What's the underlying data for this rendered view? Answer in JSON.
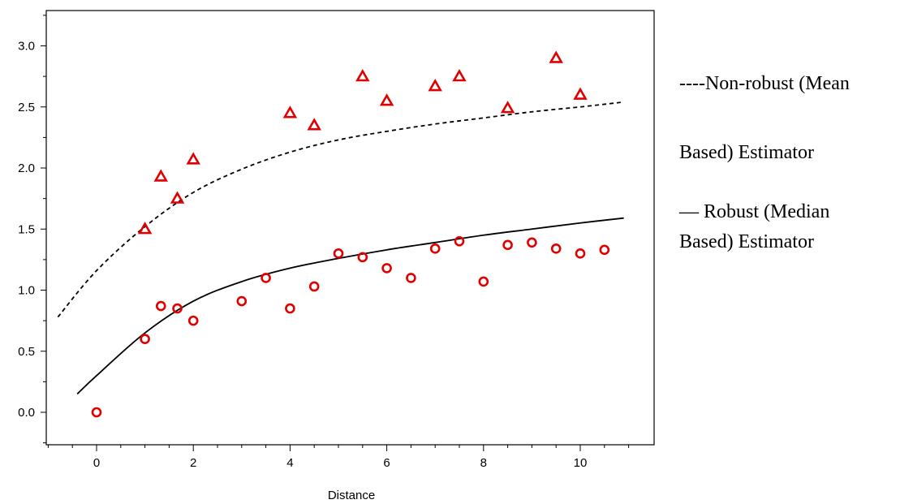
{
  "chart_data": {
    "type": "scatter",
    "title": "",
    "xlabel": "Distance",
    "ylabel": "",
    "xlim": [
      -1.0,
      11.5
    ],
    "ylim": [
      -0.27,
      3.27
    ],
    "grid": false,
    "legend_position": "right",
    "x_ticks": [
      0,
      2,
      4,
      6,
      8,
      10
    ],
    "x_tick_labels": [
      "0",
      "2",
      "4",
      "6",
      "8",
      "10"
    ],
    "y_ticks": [
      0.0,
      0.5,
      1.0,
      1.5,
      2.0,
      2.5,
      3.0
    ],
    "y_tick_labels": [
      "0.0",
      "0.5",
      "1.0",
      "1.5",
      "2.0",
      "2.5",
      "3.0"
    ],
    "colors": {
      "points": "#e00000",
      "lines": "#000000"
    },
    "series": [
      {
        "kind": "points",
        "marker": "triangle",
        "x": [
          1.0,
          1.33,
          1.67,
          2.0,
          4.0,
          4.5,
          5.5,
          6.0,
          7.0,
          7.5,
          8.5,
          9.5,
          10.0
        ],
        "y": [
          1.5,
          1.93,
          1.75,
          2.07,
          2.45,
          2.35,
          2.75,
          2.55,
          2.67,
          2.75,
          2.49,
          2.9,
          2.6
        ]
      },
      {
        "kind": "points",
        "marker": "circle",
        "x": [
          0.0,
          1.0,
          1.33,
          1.67,
          2.0,
          3.0,
          3.5,
          4.0,
          4.5,
          5.0,
          5.5,
          6.0,
          6.5,
          7.0,
          7.5,
          8.0,
          8.5,
          9.0,
          9.5,
          10.0,
          10.5
        ],
        "y": [
          0.0,
          0.6,
          0.87,
          0.85,
          0.75,
          0.91,
          1.1,
          0.85,
          1.03,
          1.3,
          1.27,
          1.18,
          1.1,
          1.34,
          1.4,
          1.07,
          1.37,
          1.39,
          1.34,
          1.3,
          1.33
        ]
      },
      {
        "kind": "curve",
        "style": "dashed",
        "x": [
          -0.8,
          0.0,
          1.0,
          2.0,
          3.0,
          4.0,
          5.0,
          6.0,
          7.0,
          8.0,
          9.0,
          10.0,
          10.9
        ],
        "y": [
          0.78,
          1.16,
          1.52,
          1.8,
          1.99,
          2.13,
          2.23,
          2.3,
          2.36,
          2.41,
          2.46,
          2.5,
          2.54
        ]
      },
      {
        "kind": "curve",
        "style": "solid",
        "x": [
          -0.4,
          0.0,
          1.0,
          2.0,
          3.0,
          4.0,
          5.0,
          6.0,
          7.0,
          8.0,
          9.0,
          10.0,
          10.9
        ],
        "y": [
          0.15,
          0.3,
          0.65,
          0.91,
          1.07,
          1.18,
          1.26,
          1.33,
          1.39,
          1.45,
          1.5,
          1.55,
          1.59
        ]
      }
    ],
    "legend": [
      {
        "line1": "----Non-robust (Mean",
        "line2": "Based) Estimator"
      },
      {
        "line1": "— Robust (Median",
        "line2": "Based) Estimator"
      }
    ]
  }
}
